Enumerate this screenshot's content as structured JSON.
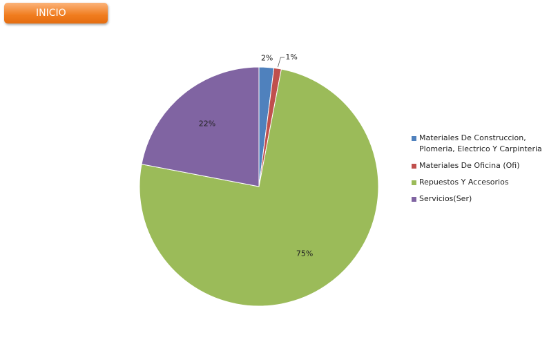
{
  "button": {
    "label": "INICIO"
  },
  "chart_data": {
    "type": "pie",
    "categories": [
      "Materiales De Construccion, Plomeria, Electrico Y Carpinteria",
      "Materiales De Oficina (Ofi)",
      "Repuestos Y Accesorios",
      "Servicios(Ser)"
    ],
    "values": [
      2,
      1,
      75,
      22
    ],
    "value_labels": [
      "2%",
      "1%",
      "75%",
      "22%"
    ],
    "colors": [
      "#4f81bd",
      "#c0504d",
      "#9bbb59",
      "#8064a2"
    ],
    "legend": "right"
  }
}
